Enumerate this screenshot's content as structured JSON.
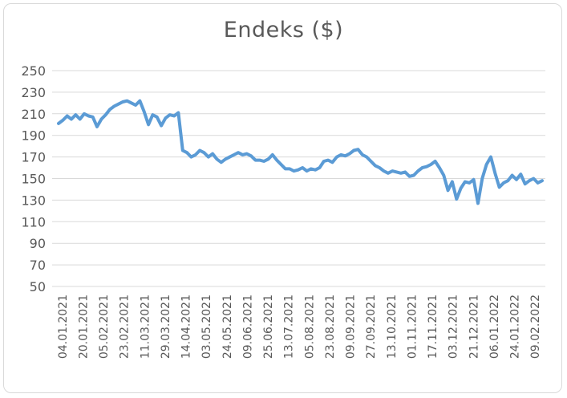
{
  "chart_data": {
    "type": "line",
    "title": "Endeks ($)",
    "xlabel": "",
    "ylabel": "",
    "ylim": [
      50,
      250
    ],
    "yticks": [
      50,
      70,
      90,
      110,
      130,
      150,
      170,
      190,
      210,
      230,
      250
    ],
    "grid": true,
    "legend": "none",
    "x_tick_labels": [
      "04.01.2021",
      "20.01.2021",
      "05.02.2021",
      "23.02.2021",
      "11.03.2021",
      "29.03.2021",
      "14.04.2021",
      "03.05.2021",
      "24.05.2021",
      "09.06.2021",
      "25.06.2021",
      "13.07.2021",
      "05.08.2021",
      "23.08.2021",
      "09.09.2021",
      "27.09.2021",
      "13.10.2021",
      "01.11.2021",
      "17.11.2021",
      "03.12.2021",
      "21.12.2021",
      "06.01.2022",
      "24.01.2022",
      "09.02.2022"
    ],
    "line_color": "#5b9bd5",
    "series": [
      {
        "values": [
          201,
          204,
          208,
          205,
          209,
          205,
          210,
          208,
          207,
          198,
          205,
          209,
          214,
          217,
          219,
          221,
          222,
          220,
          218,
          222,
          212,
          200,
          209,
          207,
          199,
          206,
          209,
          208,
          211,
          176,
          174,
          170,
          172,
          176,
          174,
          170,
          173,
          168,
          165,
          168,
          170,
          172,
          174,
          172,
          173,
          171,
          167,
          167,
          166,
          168,
          172,
          167,
          163,
          159,
          159,
          157,
          158,
          160,
          157,
          159,
          158,
          160,
          166,
          167,
          165,
          170,
          172,
          171,
          173,
          176,
          177,
          172,
          170,
          166,
          162,
          160,
          157,
          155,
          157,
          156,
          155,
          156,
          152,
          153,
          157,
          160,
          161,
          163,
          166,
          160,
          153,
          139,
          147,
          131,
          141,
          147,
          146,
          149,
          127,
          150,
          163,
          170,
          155,
          142,
          146,
          148,
          153,
          149,
          154,
          145,
          148,
          150,
          146,
          148
        ]
      }
    ]
  }
}
